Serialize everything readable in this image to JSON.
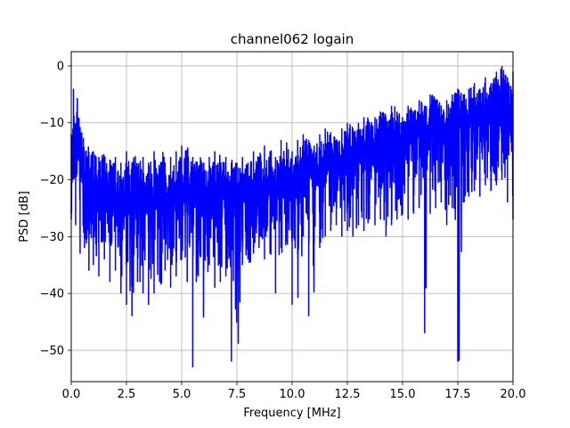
{
  "chart_data": {
    "type": "line",
    "title": "channel062 logain",
    "xlabel": "Frequency [MHz]",
    "ylabel": "PSD [dB]",
    "xlim": [
      0.0,
      20.0
    ],
    "ylim": [
      -55.5,
      2.5
    ],
    "xticks": [
      0.0,
      2.5,
      5.0,
      7.5,
      10.0,
      12.5,
      15.0,
      17.5,
      20.0
    ],
    "xtick_labels": [
      "0.0",
      "2.5",
      "5.0",
      "7.5",
      "10.0",
      "12.5",
      "15.0",
      "17.5",
      "20.0"
    ],
    "yticks": [
      0,
      -10,
      -20,
      -30,
      -40,
      -50
    ],
    "ytick_labels": [
      "0",
      "−10",
      "−20",
      "−30",
      "−40",
      "−50"
    ],
    "grid": true,
    "legend": "none",
    "series": [
      {
        "color": "#0000ff",
        "x": [
          0.0,
          0.1,
          0.2,
          0.4,
          0.6,
          0.8,
          1.0,
          1.25,
          1.5,
          1.75,
          2.0,
          2.25,
          2.5,
          2.75,
          3.0,
          3.25,
          3.5,
          3.75,
          4.0,
          4.25,
          4.5,
          4.75,
          5.0,
          5.25,
          5.5,
          5.75,
          6.0,
          6.25,
          6.5,
          6.75,
          7.0,
          7.25,
          7.5,
          7.75,
          8.0,
          8.25,
          8.5,
          8.75,
          9.0,
          9.25,
          9.5,
          9.75,
          10.0,
          10.25,
          10.5,
          10.75,
          11.0,
          11.25,
          11.5,
          11.75,
          12.0,
          12.25,
          12.5,
          12.75,
          13.0,
          13.25,
          13.5,
          13.75,
          14.0,
          14.25,
          14.5,
          14.75,
          15.0,
          15.25,
          15.5,
          15.75,
          16.0,
          16.25,
          16.5,
          16.75,
          17.0,
          17.25,
          17.5,
          17.75,
          18.0,
          18.25,
          18.5,
          18.75,
          19.0,
          19.25,
          19.5,
          19.75,
          20.0
        ],
        "y_max": [
          -12,
          -4,
          -12,
          -13,
          -15,
          -16,
          -15,
          -16,
          -17,
          -18,
          -16,
          -17,
          -15,
          -17,
          -18,
          -16,
          -17,
          -15,
          -18,
          -17,
          -16,
          -15,
          -14,
          -17,
          -16,
          -18,
          -17,
          -16,
          -15,
          -17,
          -16,
          -18,
          -17,
          -16,
          -17,
          -15,
          -16,
          -14,
          -15,
          -16,
          -13,
          -14,
          -15,
          -13,
          -12,
          -13,
          -14,
          -12,
          -11,
          -12,
          -13,
          -11,
          -10,
          -11,
          -10,
          -9,
          -10,
          -9,
          -8,
          -9,
          -7,
          -8,
          -9,
          -7,
          -8,
          -6,
          -7,
          -5,
          -6,
          -7,
          -6,
          -5,
          -4,
          -5,
          -4,
          -3,
          -4,
          -2,
          -3,
          -1,
          0,
          -2,
          -1
        ],
        "y_min": [
          -27,
          -20,
          -28,
          -33,
          -32,
          -36,
          -35,
          -37,
          -34,
          -38,
          -36,
          -40,
          -42,
          -44,
          -38,
          -40,
          -42,
          -40,
          -38,
          -36,
          -39,
          -37,
          -34,
          -38,
          -53,
          -37,
          -36,
          -35,
          -39,
          -38,
          -37,
          -52,
          -36,
          -35,
          -34,
          -33,
          -32,
          -34,
          -33,
          -40,
          -32,
          -31,
          -42,
          -33,
          -30,
          -44,
          -31,
          -32,
          -30,
          -29,
          -28,
          -30,
          -29,
          -30,
          -28,
          -29,
          -27,
          -28,
          -27,
          -30,
          -28,
          -27,
          -26,
          -27,
          -26,
          -25,
          -47,
          -26,
          -25,
          -24,
          -28,
          -25,
          -52,
          -24,
          -23,
          -22,
          -23,
          -21,
          -22,
          -21,
          -20,
          -24,
          -27
        ],
        "y_mid": [
          -22,
          -12,
          -20,
          -24,
          -23,
          -25,
          -24,
          -25,
          -24,
          -26,
          -25,
          -26,
          -25,
          -26,
          -25,
          -24,
          -25,
          -24,
          -25,
          -24,
          -25,
          -24,
          -23,
          -24,
          -25,
          -24,
          -23,
          -24,
          -23,
          -24,
          -23,
          -24,
          -23,
          -24,
          -23,
          -22,
          -23,
          -22,
          -23,
          -22,
          -21,
          -22,
          -21,
          -20,
          -19,
          -20,
          -21,
          -19,
          -18,
          -19,
          -18,
          -17,
          -17,
          -16,
          -16,
          -15,
          -16,
          -15,
          -14,
          -15,
          -14,
          -13,
          -14,
          -13,
          -12,
          -13,
          -12,
          -11,
          -12,
          -11,
          -12,
          -11,
          -10,
          -11,
          -10,
          -9,
          -10,
          -9,
          -10,
          -8,
          -9,
          -10,
          -11
        ]
      }
    ]
  }
}
